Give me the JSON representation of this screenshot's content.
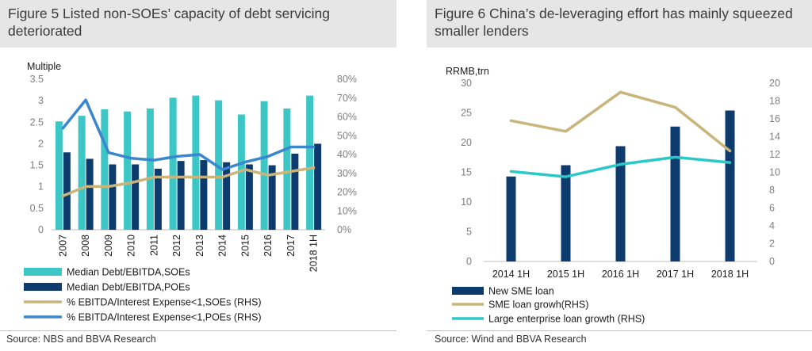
{
  "colors": {
    "soe_bar": "#3cc6c6",
    "poe_bar": "#0d3b6e",
    "soe_line": "#c9b57a",
    "poe_line": "#3a87cf",
    "sme_bar": "#0d3b6e",
    "sme_growth_line": "#c9b57a",
    "large_growth_line": "#2bc8c8",
    "title_bg": "#e6e6e6",
    "tick": "#7f7f7f"
  },
  "figure5": {
    "title": "Figure 5 Listed non-SOEs’ capacity of debt servicing deteriorated",
    "source": "Source: NBS and BBVA Research"
  },
  "figure6": {
    "title": "Figure 6 China’s de-leveraging effort has mainly squeezed smaller lenders",
    "source": "Source: Wind and BBVA Research"
  },
  "chart_data": [
    {
      "type": "bar",
      "unit_label": "Multiple",
      "categories": [
        "2007",
        "2008",
        "2009",
        "2010",
        "2011",
        "2012",
        "2013",
        "2014",
        "2015",
        "2016",
        "2017",
        "2018 1H"
      ],
      "ylim": [
        0,
        3.5
      ],
      "yticks": [
        "0",
        "0.5",
        "1",
        "1.5",
        "2",
        "2.5",
        "3",
        "3.5"
      ],
      "y2lim": [
        0,
        80
      ],
      "y2ticks": [
        "0%",
        "10%",
        "20%",
        "30%",
        "40%",
        "50%",
        "60%",
        "70%",
        "80%"
      ],
      "series": [
        {
          "name": "Median Debt/EBITDA,SOEs",
          "kind": "bar",
          "axis": "left",
          "values": [
            2.52,
            2.65,
            2.8,
            2.75,
            2.82,
            3.07,
            3.12,
            3.01,
            2.68,
            2.99,
            2.82,
            3.12
          ]
        },
        {
          "name": "Median Debt/EBITDA,POEs",
          "kind": "bar",
          "axis": "left",
          "values": [
            1.8,
            1.65,
            1.52,
            1.52,
            1.42,
            1.6,
            1.62,
            1.57,
            1.52,
            1.5,
            1.77,
            2.0
          ]
        },
        {
          "name": "% EBITDA/Interest Expense<1,SOEs (RHS)",
          "kind": "line",
          "axis": "right",
          "values": [
            18,
            23,
            23,
            25,
            28,
            28,
            28,
            28,
            32,
            29,
            31,
            33
          ]
        },
        {
          "name": "% EBITDA/Interest Expense<1,POEs (RHS)",
          "kind": "line",
          "axis": "right",
          "values": [
            54,
            69,
            41,
            38,
            37,
            39,
            40,
            32,
            36,
            39,
            44,
            44
          ]
        }
      ]
    },
    {
      "type": "bar",
      "unit_label": "RRMB,trn",
      "categories": [
        "2014 1H",
        "2015 1H",
        "2016 1H",
        "2017 1H",
        "2018 1H"
      ],
      "ylim": [
        0,
        30
      ],
      "yticks": [
        "0",
        "5",
        "10",
        "15",
        "20",
        "25",
        "30"
      ],
      "y2lim": [
        0,
        20
      ],
      "y2ticks": [
        "0",
        "2",
        "4",
        "6",
        "8",
        "10",
        "12",
        "14",
        "16",
        "18",
        "20"
      ],
      "series": [
        {
          "name": "New SME loan",
          "kind": "bar",
          "axis": "left",
          "values": [
            14.3,
            16.2,
            19.4,
            22.7,
            25.4
          ]
        },
        {
          "name": "SME loan growh(RHS)",
          "kind": "line",
          "axis": "right",
          "values": [
            15.8,
            14.6,
            19.0,
            17.3,
            12.4
          ]
        },
        {
          "name": "Large enterprise loan growth (RHS)",
          "kind": "line",
          "axis": "right",
          "values": [
            10.1,
            9.5,
            10.9,
            11.7,
            11.1
          ]
        }
      ]
    }
  ]
}
